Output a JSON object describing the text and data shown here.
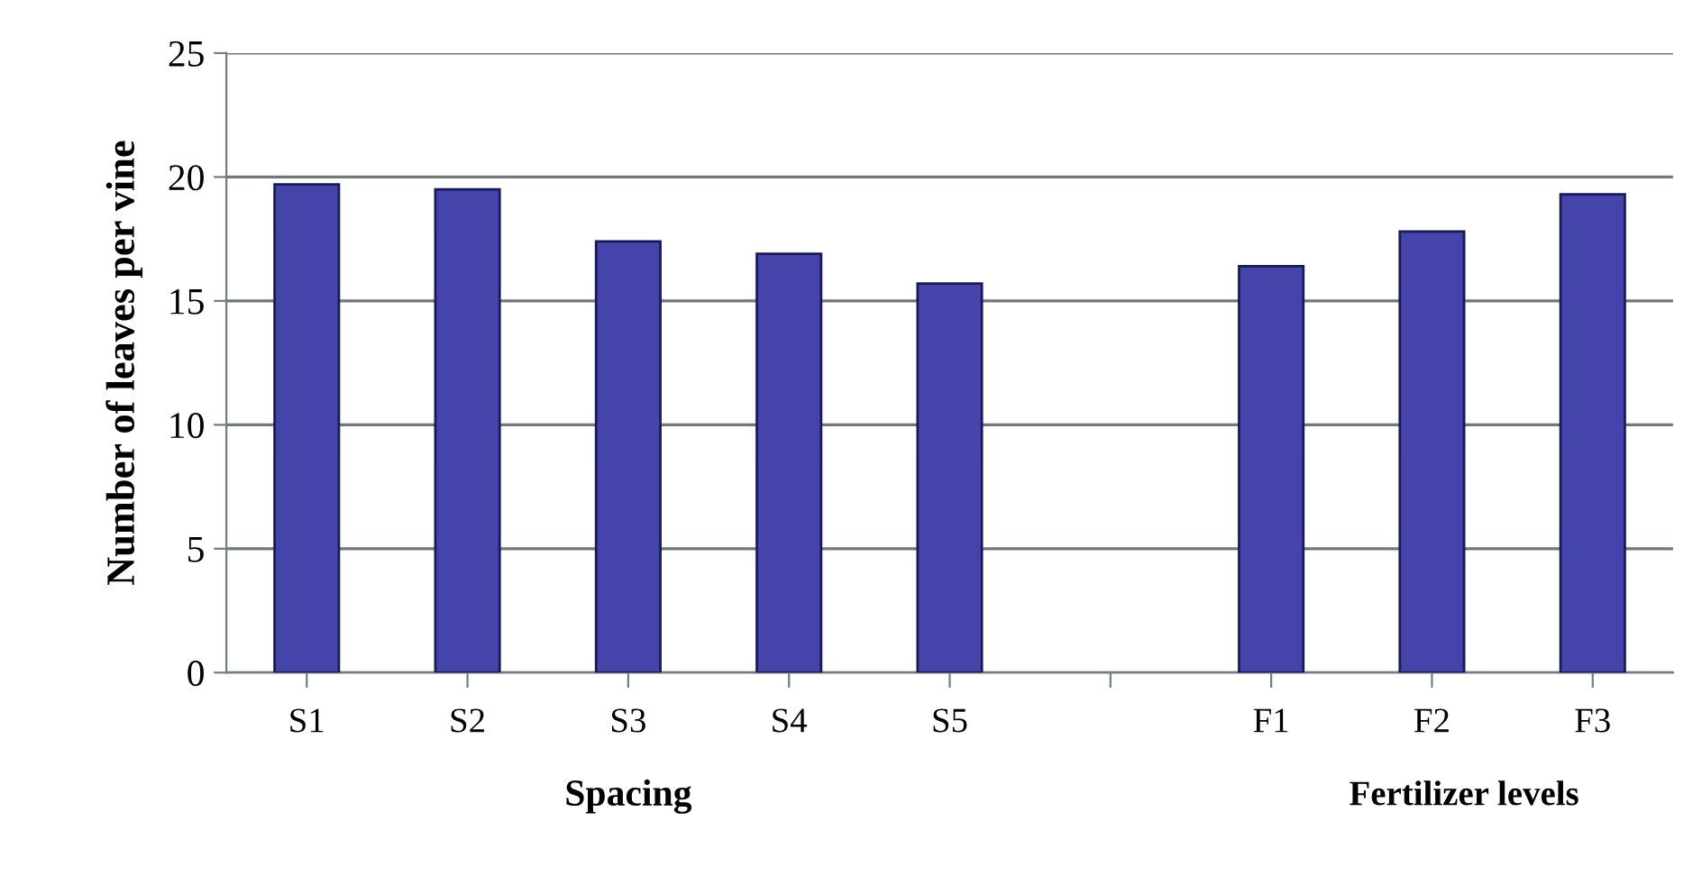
{
  "chart_data": {
    "type": "bar",
    "ylabel": "Number of leaves per vine",
    "xlabel": "Spacing",
    "annotations": [
      "Fertilizer levels"
    ],
    "categories": [
      "S1",
      "S2",
      "S3",
      "S4",
      "S5",
      null,
      "F1",
      "F2",
      "F3"
    ],
    "values": [
      19.7,
      19.5,
      17.4,
      16.9,
      15.7,
      null,
      16.4,
      17.8,
      19.3
    ],
    "color": "#4444aa",
    "ylim": [
      0,
      25
    ],
    "yticks": [
      0,
      5,
      10,
      15,
      20,
      25
    ],
    "grid": "y",
    "legend": false
  }
}
